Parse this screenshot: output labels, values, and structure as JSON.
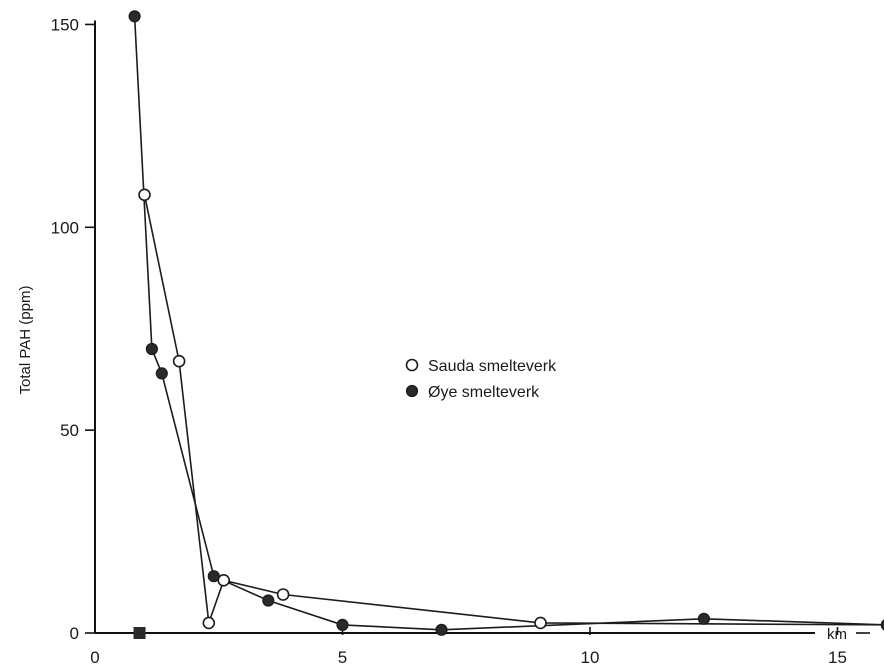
{
  "chart_data": {
    "type": "line",
    "title": "",
    "xlabel": "km",
    "ylabel": "Total PAH (ppm)",
    "xlim": [
      0,
      17
    ],
    "ylim": [
      0,
      150
    ],
    "x_ticks": [
      0,
      5,
      10,
      15
    ],
    "y_ticks": [
      0,
      50,
      100,
      150
    ],
    "grid": false,
    "legend_position": "center-right",
    "series": [
      {
        "name": "Sauda smelteverk",
        "marker": "open-circle",
        "points": [
          {
            "x": 1.0,
            "y": 108
          },
          {
            "x": 1.7,
            "y": 67
          },
          {
            "x": 2.3,
            "y": 2.5
          },
          {
            "x": 2.6,
            "y": 13
          },
          {
            "x": 3.8,
            "y": 9.5
          },
          {
            "x": 9.0,
            "y": 2.5
          },
          {
            "x": 16.0,
            "y": 2
          }
        ]
      },
      {
        "name": "Øye smelteverk",
        "marker": "filled-circle",
        "points": [
          {
            "x": 0.8,
            "y": 152
          },
          {
            "x": 1.15,
            "y": 70
          },
          {
            "x": 1.35,
            "y": 64
          },
          {
            "x": 2.4,
            "y": 14
          },
          {
            "x": 3.5,
            "y": 8
          },
          {
            "x": 5.0,
            "y": 2
          },
          {
            "x": 7.0,
            "y": 0.8
          },
          {
            "x": 12.3,
            "y": 3.5
          },
          {
            "x": 16.0,
            "y": 2
          }
        ]
      }
    ],
    "baseline_marker": {
      "x": 0.9,
      "y": 0
    }
  }
}
